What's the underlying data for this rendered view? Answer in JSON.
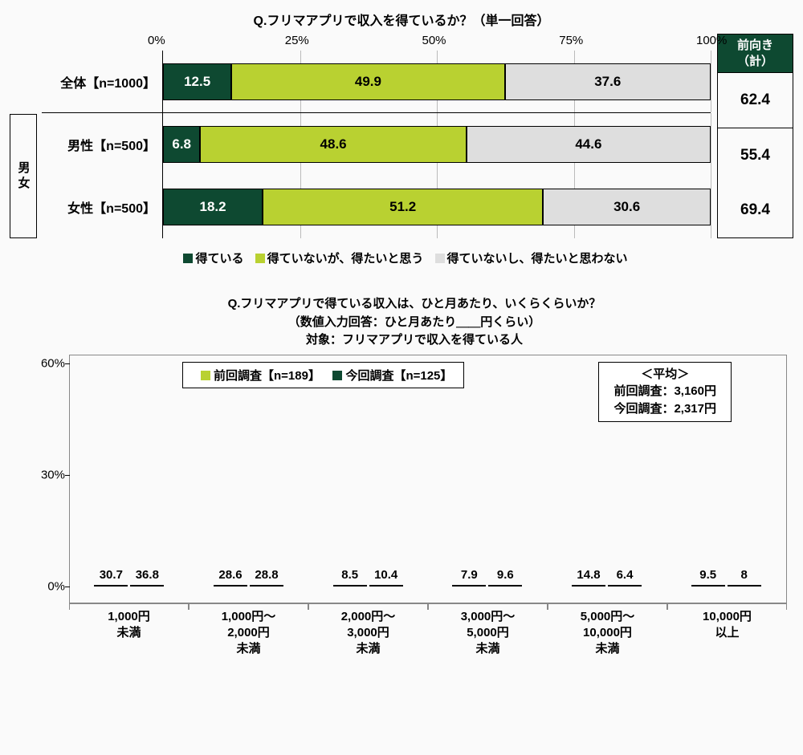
{
  "colors": {
    "dark_green": "#0e4931",
    "light_green": "#b9d131",
    "gray": "#dedede",
    "white": "#ffffff",
    "black": "#000000"
  },
  "chart1": {
    "type": "stacked_bar_horizontal",
    "title": "Q.フリマアプリで収入を得ているか？（単一回答）",
    "axis_ticks": [
      0,
      25,
      50,
      75,
      100
    ],
    "axis_unit": "%",
    "gender_box_label": "男女",
    "series": [
      {
        "key": "yes",
        "label": "得ている",
        "color": "#0e4931",
        "text": "#ffffff"
      },
      {
        "key": "want",
        "label": "得ていないが、得たいと思う",
        "color": "#b9d131",
        "text": "#000000"
      },
      {
        "key": "no",
        "label": "得ていないし、得たいと思わない",
        "color": "#dedede",
        "text": "#000000"
      }
    ],
    "rows": [
      {
        "id": "total",
        "label": "全体【n=1000】",
        "values": [
          12.5,
          49.9,
          37.6
        ],
        "positive": 62.4
      },
      {
        "id": "male",
        "label": "男性【n=500】",
        "values": [
          6.8,
          48.6,
          44.6
        ],
        "positive": 55.4
      },
      {
        "id": "female",
        "label": "女性【n=500】",
        "values": [
          18.2,
          51.2,
          30.6
        ],
        "positive": 69.4
      }
    ],
    "right_header": "前向き\n（計）"
  },
  "chart2": {
    "type": "grouped_bar_vertical",
    "title_line1": "Q.フリマアプリで得ている収入は、ひと月あたり、いくらくらいか？",
    "title_line2": "（数値入力回答：ひと月あたり＿＿円くらい）",
    "title_line3": "対象：フリマアプリで収入を得ている人",
    "y_ticks": [
      0,
      30,
      60
    ],
    "y_unit": "%",
    "y_max": 60,
    "series": [
      {
        "key": "prev",
        "label": "前回調査【n=189】",
        "color": "#b9d131"
      },
      {
        "key": "curr",
        "label": "今回調査【n=125】",
        "color": "#0e4931"
      }
    ],
    "categories": [
      {
        "label_lines": [
          "1,000円",
          "未満"
        ],
        "values": [
          30.7,
          36.8
        ]
      },
      {
        "label_lines": [
          "1,000円～",
          "2,000円",
          "未満"
        ],
        "values": [
          28.6,
          28.8
        ]
      },
      {
        "label_lines": [
          "2,000円～",
          "3,000円",
          "未満"
        ],
        "values": [
          8.5,
          10.4
        ]
      },
      {
        "label_lines": [
          "3,000円～",
          "5,000円",
          "未満"
        ],
        "values": [
          7.9,
          9.6
        ]
      },
      {
        "label_lines": [
          "5,000円～",
          "10,000円",
          "未満"
        ],
        "values": [
          14.8,
          6.4
        ]
      },
      {
        "label_lines": [
          "10,000円",
          "以上"
        ],
        "values": [
          9.5,
          8.0
        ]
      }
    ],
    "average_box": {
      "header": "＜平均＞",
      "line1": "前回調査：3,160円",
      "line2": "今回調査：2,317円"
    }
  }
}
